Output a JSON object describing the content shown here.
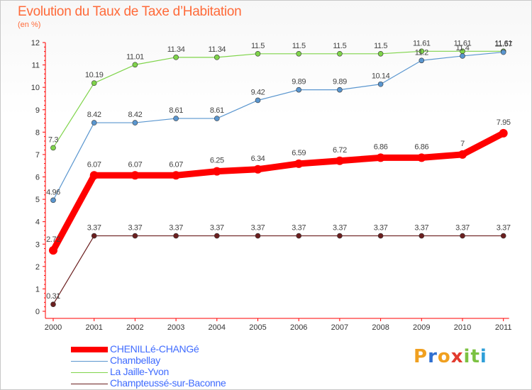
{
  "title": "Evolution du Taux de Taxe d’Habitation",
  "subtitle": "(en %)",
  "brand": {
    "letters": [
      "P",
      "r",
      "o",
      "x",
      "i",
      "t",
      "i"
    ],
    "colors": [
      "#f0a020",
      "#2f6fd0",
      "#f0a020",
      "#e23b2e",
      "#7cc242",
      "#7cc242",
      "#2f9fd8"
    ]
  },
  "chart_data": {
    "type": "line",
    "x": [
      "2000",
      "2001",
      "2002",
      "2003",
      "2004",
      "2005",
      "2006",
      "2007",
      "2008",
      "2009",
      "2010",
      "2011"
    ],
    "yticks": [
      "0",
      "1",
      "2",
      "3",
      "4",
      "5",
      "6",
      "7",
      "8",
      "9",
      "10",
      "11",
      "12"
    ],
    "ylim": [
      0,
      12
    ],
    "grid": false,
    "legend_position": "bottom-left",
    "series": [
      {
        "name": "Champteussé-sur-Baconne",
        "color": "#6b1f1f",
        "values": [
          0.31,
          3.37,
          3.37,
          3.37,
          3.37,
          3.37,
          3.37,
          3.37,
          3.37,
          3.37,
          3.37,
          3.37
        ],
        "labels": [
          "0.31",
          "3.37",
          "3.37",
          "3.37",
          "3.37",
          "3.37",
          "3.37",
          "3.37",
          "3.37",
          "3.37",
          "3.37",
          "3.37"
        ]
      },
      {
        "name": "La Jaille-Yvon",
        "color": "#7fd44a",
        "values": [
          7.3,
          10.19,
          11.01,
          11.34,
          11.34,
          11.5,
          11.5,
          11.5,
          11.5,
          11.61,
          11.61,
          11.61
        ],
        "labels": [
          "7.3",
          "10.19",
          "11.01",
          "11.34",
          "11.34",
          "11.5",
          "11.5",
          "11.5",
          "11.5",
          "11.61",
          "11.61",
          "11.61"
        ]
      },
      {
        "name": "Chambellay",
        "color": "#5a96cf",
        "values": [
          4.96,
          8.42,
          8.42,
          8.61,
          8.61,
          9.42,
          9.89,
          9.89,
          10.14,
          11.2,
          11.4,
          11.57
        ],
        "labels": [
          "4.96",
          "8.42",
          "8.42",
          "8.61",
          "8.61",
          "9.42",
          "9.89",
          "9.89",
          "10.14",
          "11.2",
          "11.4",
          "11.57"
        ]
      },
      {
        "name": "CHENILLé-CHANGé",
        "color": "#ff0000",
        "values": [
          2.72,
          6.07,
          6.07,
          6.07,
          6.25,
          6.34,
          6.59,
          6.72,
          6.86,
          6.86,
          7,
          7.95
        ],
        "labels": [
          "2.72",
          "6.07",
          "6.07",
          "6.07",
          "6.25",
          "6.34",
          "6.59",
          "6.72",
          "6.86",
          "6.86",
          "7",
          "7.95"
        ]
      }
    ]
  },
  "legend": [
    {
      "label": "CHENILLé-CHANGé",
      "color": "#ff0000",
      "thickness": 8
    },
    {
      "label": "Chambellay",
      "color": "#5a96cf",
      "thickness": 1
    },
    {
      "label": "La Jaille-Yvon",
      "color": "#7fd44a",
      "thickness": 1
    },
    {
      "label": "Champteussé-sur-Baconne",
      "color": "#6b1f1f",
      "thickness": 1
    }
  ]
}
